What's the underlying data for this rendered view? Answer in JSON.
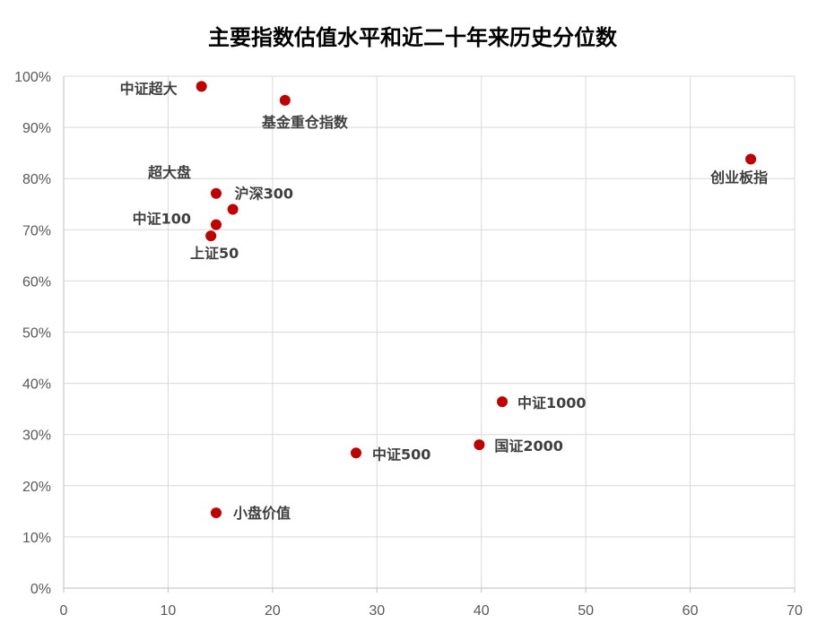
{
  "chart_data": {
    "type": "scatter",
    "title": "主要指数估值水平和近二十年来历史分位数",
    "xlabel": "",
    "ylabel": "",
    "xlim": [
      0,
      70
    ],
    "ylim": [
      0,
      1
    ],
    "x_ticks": [
      "0",
      "10",
      "20",
      "30",
      "40",
      "50",
      "60",
      "70"
    ],
    "y_ticks": [
      "0%",
      "10%",
      "20%",
      "30%",
      "40%",
      "50%",
      "60%",
      "70%",
      "80%",
      "90%",
      "100%"
    ],
    "grid": true,
    "legend": "none",
    "point_color": "#c00000",
    "points": [
      {
        "label": "中证超大",
        "x": 13.2,
        "y": 0.98
      },
      {
        "label": "基金重仓指数",
        "x": 21.2,
        "y": 0.953
      },
      {
        "label": "创业板指",
        "x": 65.8,
        "y": 0.838
      },
      {
        "label": "超大盘",
        "x": 14.6,
        "y": 0.771
      },
      {
        "label": "沪深300",
        "x": 16.2,
        "y": 0.74
      },
      {
        "label": "中证100",
        "x": 14.6,
        "y": 0.71
      },
      {
        "label": "上证50",
        "x": 14.1,
        "y": 0.688
      },
      {
        "label": "中证1000",
        "x": 42.0,
        "y": 0.364
      },
      {
        "label": "国证2000",
        "x": 39.8,
        "y": 0.28
      },
      {
        "label": "中证500",
        "x": 28.0,
        "y": 0.264
      },
      {
        "label": "小盘价值",
        "x": 14.6,
        "y": 0.147
      }
    ]
  }
}
